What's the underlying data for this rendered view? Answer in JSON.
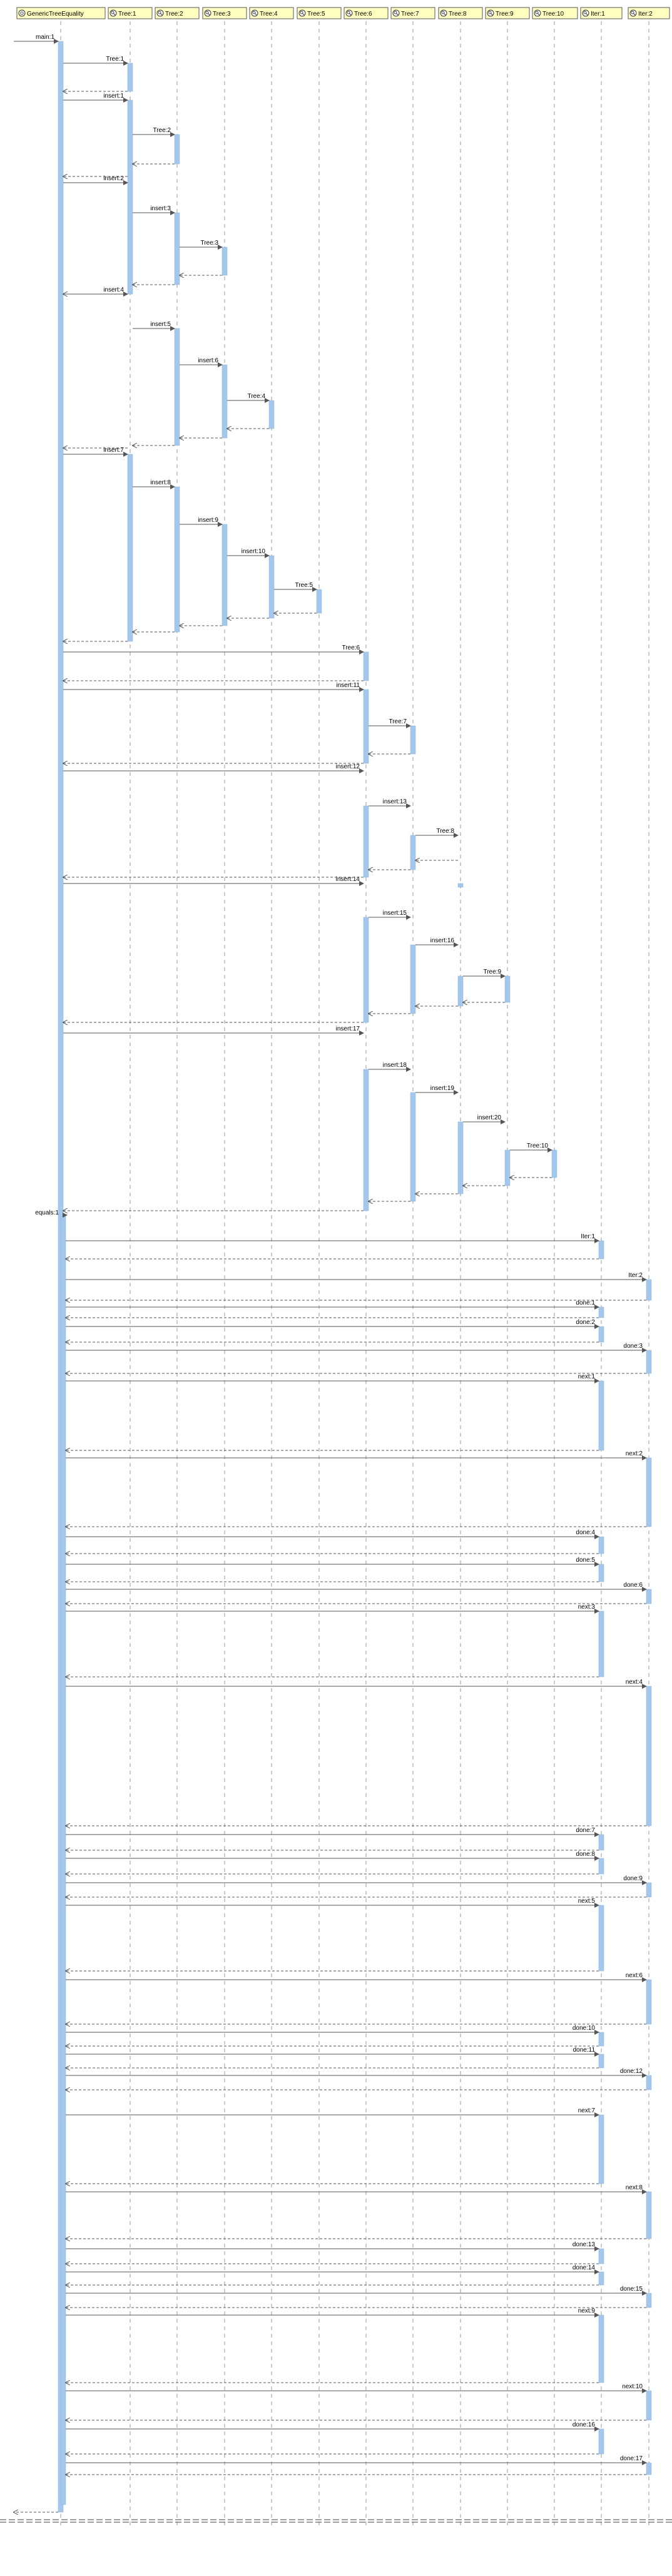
{
  "diagram": {
    "type": "sequence",
    "participants": [
      {
        "id": "gte",
        "label": "GenericTreeEquality",
        "icon": "class-icon"
      },
      {
        "id": "t1",
        "label": "Tree:1",
        "icon": "object-icon"
      },
      {
        "id": "t2",
        "label": "Tree:2",
        "icon": "object-icon"
      },
      {
        "id": "t3",
        "label": "Tree:3",
        "icon": "object-icon"
      },
      {
        "id": "t4",
        "label": "Tree:4",
        "icon": "object-icon"
      },
      {
        "id": "t5",
        "label": "Tree:5",
        "icon": "object-icon"
      },
      {
        "id": "t6",
        "label": "Tree:6",
        "icon": "object-icon"
      },
      {
        "id": "t7",
        "label": "Tree:7",
        "icon": "object-icon"
      },
      {
        "id": "t8",
        "label": "Tree:8",
        "icon": "object-icon"
      },
      {
        "id": "t9",
        "label": "Tree:9",
        "icon": "object-icon"
      },
      {
        "id": "t10",
        "label": "Tree:10",
        "icon": "object-icon"
      },
      {
        "id": "it1",
        "label": "Iter:1",
        "icon": "object-icon"
      },
      {
        "id": "it2",
        "label": "Iter:2",
        "icon": "object-icon"
      }
    ],
    "calls": [
      {
        "label": "main:1",
        "from": "ext",
        "to": "gte",
        "kind": "main"
      },
      {
        "label": "Tree:1",
        "from": "gte",
        "to": "t1"
      },
      {
        "label": "insert:1",
        "from": "gte",
        "to": "t1"
      },
      {
        "label": "Tree:2",
        "from": "t1",
        "to": "t2"
      },
      {
        "label": "insert:2",
        "from": "gte",
        "to": "t1"
      },
      {
        "label": "insert:3",
        "from": "t1",
        "to": "t2"
      },
      {
        "label": "Tree:3",
        "from": "t2",
        "to": "t3"
      },
      {
        "label": "insert:4",
        "from": "gte",
        "to": "t1"
      },
      {
        "label": "insert:5",
        "from": "t1",
        "to": "t2"
      },
      {
        "label": "insert:6",
        "from": "t2",
        "to": "t3"
      },
      {
        "label": "Tree:4",
        "from": "t3",
        "to": "t4"
      },
      {
        "label": "insert:7",
        "from": "gte",
        "to": "t1"
      },
      {
        "label": "insert:8",
        "from": "t1",
        "to": "t2"
      },
      {
        "label": "insert:9",
        "from": "t2",
        "to": "t3"
      },
      {
        "label": "insert:10",
        "from": "t3",
        "to": "t4"
      },
      {
        "label": "Tree:5",
        "from": "t4",
        "to": "t5"
      },
      {
        "label": "Tree:6",
        "from": "gte",
        "to": "t6"
      },
      {
        "label": "insert:11",
        "from": "gte",
        "to": "t6"
      },
      {
        "label": "Tree:7",
        "from": "t6",
        "to": "t7"
      },
      {
        "label": "insert:12",
        "from": "gte",
        "to": "t6"
      },
      {
        "label": "insert:13",
        "from": "t6",
        "to": "t7"
      },
      {
        "label": "Tree:8",
        "from": "t7",
        "to": "t8"
      },
      {
        "label": "insert:14",
        "from": "gte",
        "to": "t6"
      },
      {
        "label": "insert:15",
        "from": "t6",
        "to": "t7"
      },
      {
        "label": "insert:16",
        "from": "t7",
        "to": "t8"
      },
      {
        "label": "Tree:9",
        "from": "t8",
        "to": "t9"
      },
      {
        "label": "insert:17",
        "from": "gte",
        "to": "t6"
      },
      {
        "label": "insert:18",
        "from": "t6",
        "to": "t7"
      },
      {
        "label": "insert:19",
        "from": "t7",
        "to": "t8"
      },
      {
        "label": "insert:20",
        "from": "t8",
        "to": "t9"
      },
      {
        "label": "Tree:10",
        "from": "t9",
        "to": "t10"
      },
      {
        "label": "equals:1",
        "from": "gte",
        "to": "gte",
        "kind": "self"
      },
      {
        "label": "Iter:1",
        "from": "gte",
        "to": "it1"
      },
      {
        "label": "Iter:2",
        "from": "gte",
        "to": "it2"
      },
      {
        "label": "done:1",
        "from": "gte",
        "to": "it1"
      },
      {
        "label": "done:2",
        "from": "gte",
        "to": "it1"
      },
      {
        "label": "done:3",
        "from": "gte",
        "to": "it2"
      },
      {
        "label": "next:1",
        "from": "gte",
        "to": "it1"
      },
      {
        "label": "next:2",
        "from": "gte",
        "to": "it2"
      },
      {
        "label": "done:4",
        "from": "gte",
        "to": "it1"
      },
      {
        "label": "done:5",
        "from": "gte",
        "to": "it1"
      },
      {
        "label": "done:6",
        "from": "gte",
        "to": "it2"
      },
      {
        "label": "next:3",
        "from": "gte",
        "to": "it1"
      },
      {
        "label": "next:4",
        "from": "gte",
        "to": "it2"
      },
      {
        "label": "done:7",
        "from": "gte",
        "to": "it1"
      },
      {
        "label": "done:8",
        "from": "gte",
        "to": "it1"
      },
      {
        "label": "done:9",
        "from": "gte",
        "to": "it2"
      },
      {
        "label": "next:5",
        "from": "gte",
        "to": "it1"
      },
      {
        "label": "next:6",
        "from": "gte",
        "to": "it2"
      },
      {
        "label": "done:10",
        "from": "gte",
        "to": "it1"
      },
      {
        "label": "done:11",
        "from": "gte",
        "to": "it1"
      },
      {
        "label": "done:12",
        "from": "gte",
        "to": "it2"
      },
      {
        "label": "next:7",
        "from": "gte",
        "to": "it1"
      },
      {
        "label": "next:8",
        "from": "gte",
        "to": "it2"
      },
      {
        "label": "done:13",
        "from": "gte",
        "to": "it1"
      },
      {
        "label": "done:14",
        "from": "gte",
        "to": "it1"
      },
      {
        "label": "done:15",
        "from": "gte",
        "to": "it2"
      },
      {
        "label": "next:9",
        "from": "gte",
        "to": "it1"
      },
      {
        "label": "next:10",
        "from": "gte",
        "to": "it2"
      },
      {
        "label": "done:16",
        "from": "gte",
        "to": "it1"
      },
      {
        "label": "done:17",
        "from": "gte",
        "to": "it2"
      }
    ],
    "colors": {
      "participant_fill": "#ffffc0",
      "participant_border": "#555555",
      "lifeline": "#999999",
      "activation": "#a4c8ec",
      "arrow": "#555555"
    }
  }
}
